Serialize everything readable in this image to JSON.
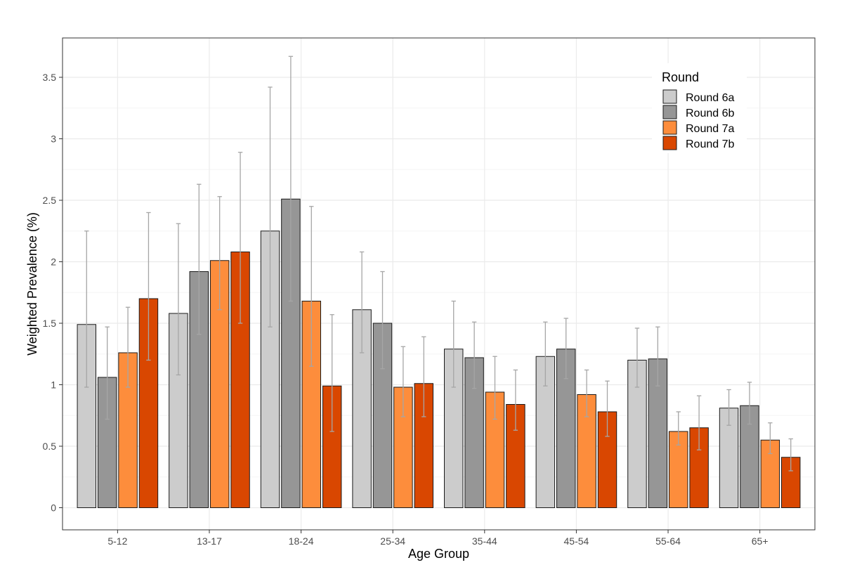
{
  "chart_data": {
    "type": "bar",
    "title": "",
    "xlabel": "Age Group",
    "ylabel": "Weighted Prevalence (%)",
    "ylim": [
      -0.18,
      3.82
    ],
    "yticks": [
      0,
      0.5,
      1,
      1.5,
      2,
      2.5,
      3,
      3.5
    ],
    "ytick_labels": [
      "0",
      "0.5",
      "1",
      "1.5",
      "2",
      "2.5",
      "3",
      "3.5"
    ],
    "grid": true,
    "legend": {
      "title": "Round",
      "position": "top-right"
    },
    "categories": [
      "5-12",
      "13-17",
      "18-24",
      "25-34",
      "35-44",
      "45-54",
      "55-64",
      "65+"
    ],
    "series": [
      {
        "name": "Round 6a",
        "color": "#cccccc",
        "values": [
          1.49,
          1.58,
          2.25,
          1.61,
          1.29,
          1.23,
          1.2,
          0.81
        ],
        "err_low": [
          0.98,
          1.08,
          1.47,
          1.26,
          0.98,
          0.99,
          0.98,
          0.67
        ],
        "err_high": [
          2.25,
          2.31,
          3.42,
          2.08,
          1.68,
          1.51,
          1.46,
          0.96
        ]
      },
      {
        "name": "Round 6b",
        "color": "#969696",
        "values": [
          1.06,
          1.92,
          2.51,
          1.5,
          1.22,
          1.29,
          1.21,
          0.83
        ],
        "err_low": [
          0.72,
          1.41,
          1.68,
          1.13,
          0.97,
          1.05,
          0.99,
          0.68
        ],
        "err_high": [
          1.47,
          2.63,
          3.67,
          1.92,
          1.51,
          1.54,
          1.47,
          1.02
        ]
      },
      {
        "name": "Round 7a",
        "color": "#fd8d3c",
        "values": [
          1.26,
          2.01,
          1.68,
          0.98,
          0.94,
          0.92,
          0.62,
          0.55
        ],
        "err_low": [
          0.98,
          1.61,
          1.15,
          0.74,
          0.72,
          0.74,
          0.51,
          0.44
        ],
        "err_high": [
          1.63,
          2.53,
          2.45,
          1.31,
          1.23,
          1.12,
          0.78,
          0.69
        ]
      },
      {
        "name": "Round 7b",
        "color": "#d94701",
        "values": [
          1.7,
          2.08,
          0.99,
          1.01,
          0.84,
          0.78,
          0.65,
          0.41
        ],
        "err_low": [
          1.2,
          1.5,
          0.62,
          0.74,
          0.63,
          0.58,
          0.47,
          0.3
        ],
        "err_high": [
          2.4,
          2.89,
          1.57,
          1.39,
          1.12,
          1.03,
          0.91,
          0.56
        ]
      }
    ],
    "colors": {
      "bar_outline": "#1a1a1a",
      "errorbar": "#a6a6a6",
      "grid_major": "#ebebeb",
      "grid_minor": "#f5f5f5",
      "panel_border": "#333333"
    }
  }
}
